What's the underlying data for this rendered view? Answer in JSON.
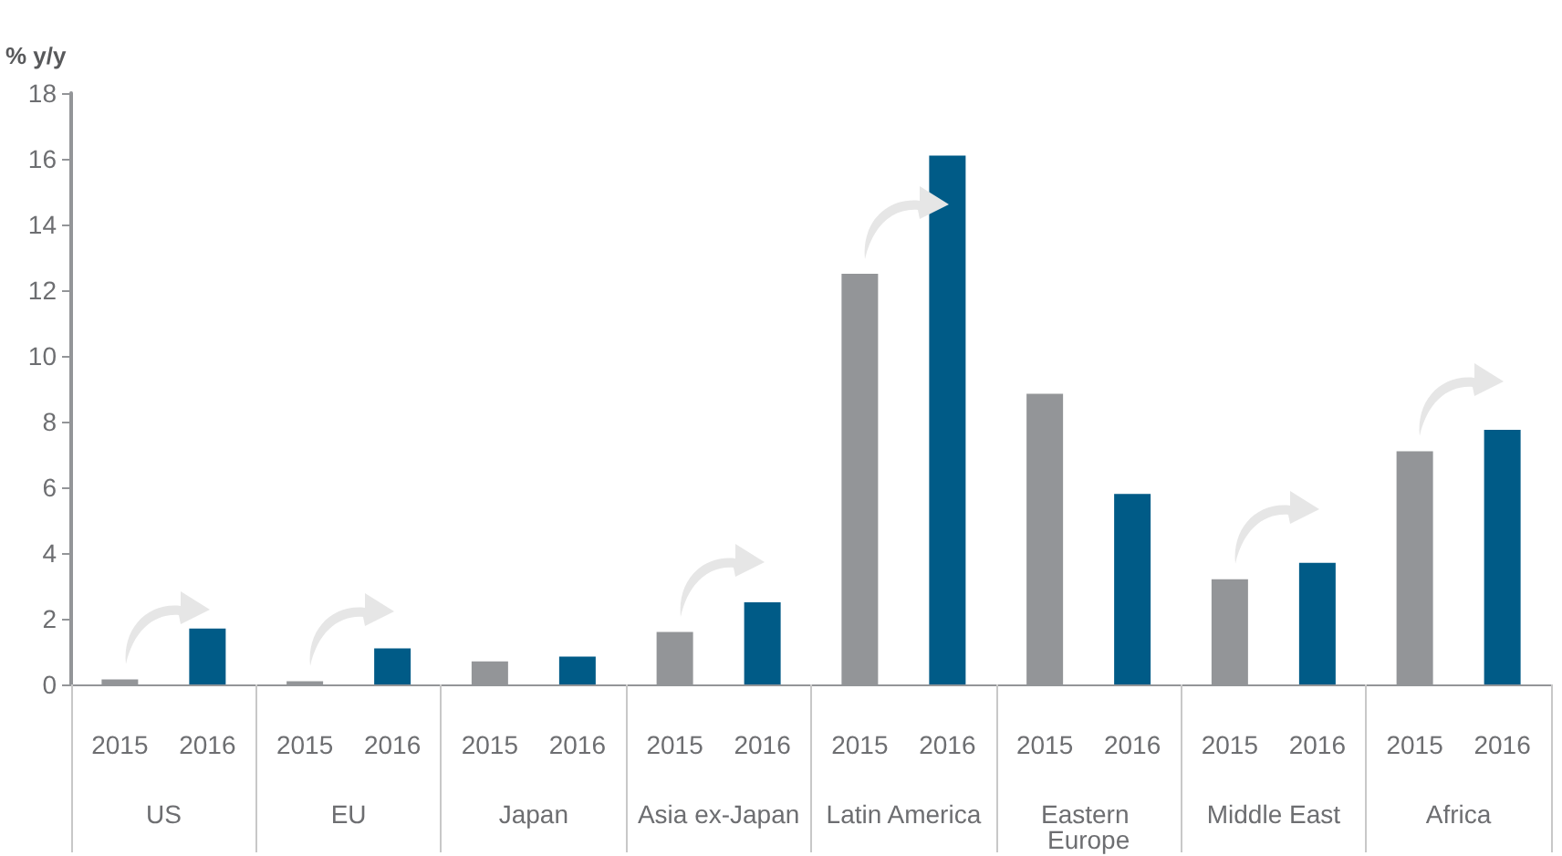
{
  "chart_data": {
    "type": "bar",
    "ylabel": "% y/y",
    "categories": [
      "US",
      "EU",
      "Japan",
      "Asia ex-Japan",
      "Latin America",
      "Eastern Europe",
      "Middle East",
      "Africa"
    ],
    "series": [
      {
        "name": "2015",
        "color": "#939598",
        "values": [
          0.15,
          0.1,
          0.7,
          1.6,
          12.5,
          8.85,
          3.2,
          7.1
        ]
      },
      {
        "name": "2016",
        "color": "#005b87",
        "values": [
          1.7,
          1.1,
          0.85,
          2.5,
          16.1,
          5.8,
          3.7,
          7.75
        ]
      }
    ],
    "ylim": [
      0,
      18
    ],
    "yticks": [
      0,
      2,
      4,
      6,
      8,
      10,
      12,
      14,
      16,
      18
    ],
    "grid": false,
    "legend": false
  }
}
